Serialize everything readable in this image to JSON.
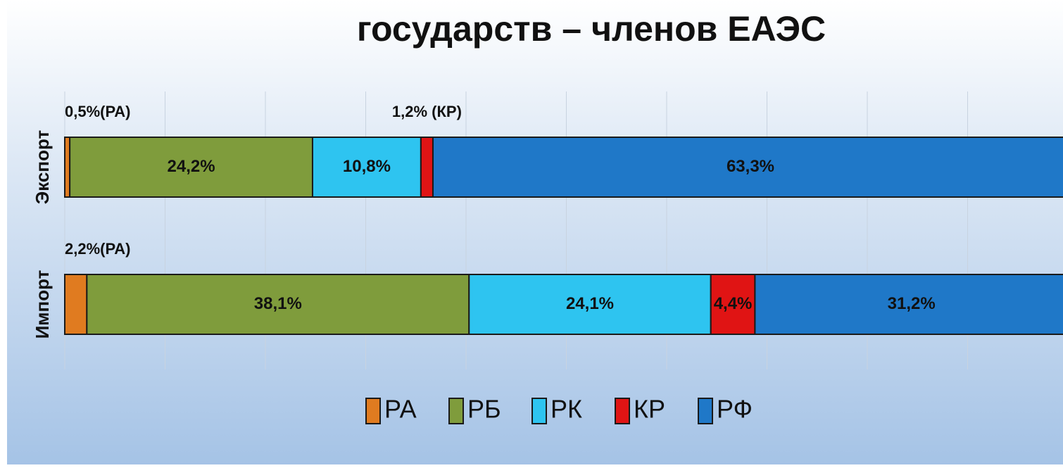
{
  "chart_data": {
    "type": "stacked-barh",
    "title": "государств – членов ЕАЭС",
    "categories": [
      "Экспорт",
      "Импорт"
    ],
    "series": [
      {
        "name": "РА",
        "color": "#e07b20",
        "values": [
          0.5,
          2.2
        ],
        "value_labels": [
          "0,5%(РА)",
          "2,2%(РА)"
        ]
      },
      {
        "name": "РБ",
        "color": "#7f9c3c",
        "values": [
          24.2,
          38.1
        ],
        "value_labels": [
          "24,2%",
          "38,1%"
        ]
      },
      {
        "name": "РК",
        "color": "#2ec4f0",
        "values": [
          10.8,
          24.1
        ],
        "value_labels": [
          "10,8%",
          "24,1%"
        ]
      },
      {
        "name": "КР",
        "color": "#e01414",
        "values": [
          1.2,
          4.4
        ],
        "value_labels": [
          "1,2% (КР)",
          "4,4%"
        ]
      },
      {
        "name": "РФ",
        "color": "#1f78c8",
        "values": [
          63.3,
          31.2
        ],
        "value_labels": [
          "63,3%",
          "31,2%"
        ]
      }
    ],
    "xlim": [
      0,
      100
    ],
    "xticks": [
      0,
      10,
      20,
      30,
      40,
      50,
      60,
      70,
      80,
      90,
      100
    ],
    "grid": true,
    "legend": "bottom"
  }
}
